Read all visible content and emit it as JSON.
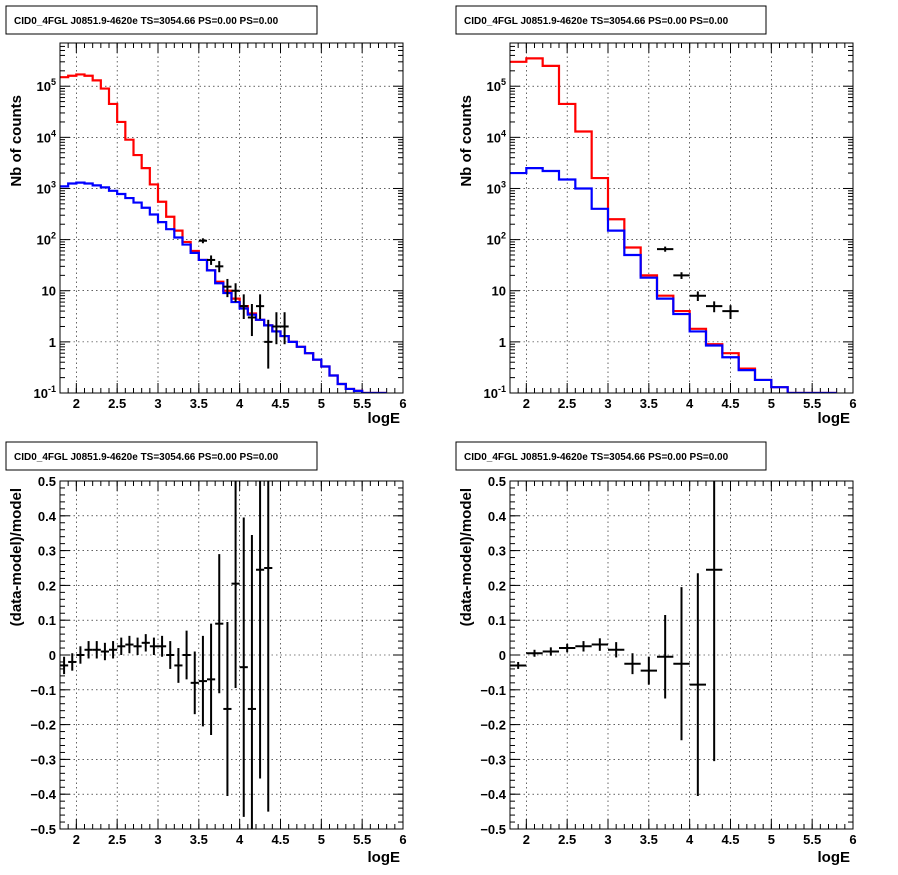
{
  "chart_data": [
    {
      "type": "line",
      "title": "CID0_4FGL J0851.9-4620e TS=3054.66 PS=0.00 PS=0.00",
      "xlabel": "logE",
      "ylabel": "Nb of counts",
      "log_y": true,
      "xlim": [
        1.8,
        6.0
      ],
      "ylim": [
        0.1,
        700000
      ],
      "xticks": [
        "2",
        "2.5",
        "3",
        "3.5",
        "4",
        "4.5",
        "5",
        "5.5",
        "6"
      ],
      "yticks": [
        "10^-1",
        "1",
        "10",
        "10^2",
        "10^3",
        "10^4",
        "10^5"
      ],
      "grid": true,
      "bin_edges": [
        1.8,
        1.9,
        2.0,
        2.1,
        2.2,
        2.3,
        2.4,
        2.5,
        2.6,
        2.7,
        2.8,
        2.9,
        3.0,
        3.1,
        3.2,
        3.3,
        3.4,
        3.5,
        3.6,
        3.7,
        3.8,
        3.9,
        4.0,
        4.1,
        4.2,
        4.3,
        4.4,
        4.5,
        4.6,
        4.7,
        4.8,
        4.9,
        5.0,
        5.1,
        5.2,
        5.3,
        5.4,
        5.5,
        5.6,
        5.7,
        5.8,
        5.9,
        6.0
      ],
      "series": [
        {
          "color": "#ff0000",
          "style": "histogram",
          "values": [
            150000,
            160000,
            170000,
            160000,
            130000,
            90000,
            45000,
            20000,
            9000,
            4500,
            2500,
            1200,
            550,
            280,
            150,
            90,
            60,
            40,
            25,
            15,
            10,
            7,
            5,
            3.6,
            2.7,
            2.1,
            1.6,
            1.3,
            1.0,
            0.8,
            0.6,
            0.45,
            0.33,
            0.22,
            0.15,
            0.12,
            0.11,
            0.1,
            0.1,
            0.1
          ]
        },
        {
          "color": "#0000ff",
          "style": "histogram",
          "values": [
            1100,
            1250,
            1300,
            1250,
            1150,
            1050,
            900,
            780,
            650,
            530,
            420,
            310,
            220,
            160,
            110,
            80,
            55,
            40,
            25,
            14,
            9,
            6,
            4.5,
            3.4,
            2.7,
            2.1,
            1.6,
            1.3,
            1.0,
            0.8,
            0.6,
            0.45,
            0.33,
            0.22,
            0.15,
            0.12,
            0.11,
            0.1,
            0.1,
            0.1
          ]
        },
        {
          "color": "#000000",
          "style": "errorbar",
          "x": [
            3.55,
            3.65,
            3.75,
            3.85,
            3.95,
            4.05,
            4.15,
            4.25,
            4.35,
            4.45,
            4.55
          ],
          "xerr": 0.05,
          "y": [
            95,
            40,
            30,
            12,
            10,
            5,
            3,
            5,
            1,
            2,
            2
          ],
          "ylow": [
            85,
            32,
            23,
            7.5,
            6,
            2.8,
            1.3,
            2.8,
            0.3,
            0.9,
            0.9
          ],
          "yhigh": [
            106,
            49,
            38,
            17,
            14,
            8.5,
            5.5,
            8.5,
            2.7,
            3.8,
            3.8
          ]
        }
      ]
    },
    {
      "type": "line",
      "title": "CID0_4FGL J0851.9-4620e TS=3054.66 PS=0.00 PS=0.00",
      "xlabel": "logE",
      "ylabel": "Nb of counts",
      "log_y": true,
      "xlim": [
        1.8,
        6.0
      ],
      "ylim": [
        0.1,
        700000
      ],
      "xticks": [
        "2",
        "2.5",
        "3",
        "3.5",
        "4",
        "4.5",
        "5",
        "5.5",
        "6"
      ],
      "yticks": [
        "10^-1",
        "1",
        "10",
        "10^2",
        "10^3",
        "10^4",
        "10^5"
      ],
      "grid": true,
      "bin_edges": [
        1.8,
        2.0,
        2.2,
        2.4,
        2.6,
        2.8,
        3.0,
        3.2,
        3.4,
        3.6,
        3.8,
        4.0,
        4.2,
        4.4,
        4.6,
        4.8,
        5.0,
        5.2,
        5.4,
        5.6,
        5.8,
        6.0
      ],
      "series": [
        {
          "color": "#ff0000",
          "style": "histogram",
          "values": [
            300000,
            350000,
            250000,
            45000,
            13000,
            1600,
            250,
            70,
            20,
            8,
            4,
            1.8,
            0.9,
            0.6,
            0.3,
            0.18,
            0.13,
            0.1,
            0.1,
            0.1
          ]
        },
        {
          "color": "#0000ff",
          "style": "histogram",
          "values": [
            2000,
            2500,
            2200,
            1500,
            1000,
            400,
            150,
            50,
            18,
            7,
            3.5,
            1.6,
            0.85,
            0.5,
            0.28,
            0.18,
            0.13,
            0.1,
            0.1,
            0.1
          ]
        },
        {
          "color": "#000000",
          "style": "errorbar",
          "x": [
            3.7,
            3.9,
            4.1,
            4.3,
            4.5
          ],
          "xerr": 0.1,
          "y": [
            65,
            20,
            8,
            5,
            4
          ],
          "ylow": [
            58,
            17,
            6.3,
            3.8,
            2.8
          ],
          "yhigh": [
            73,
            23,
            9.7,
            6.2,
            5.2
          ]
        }
      ]
    },
    {
      "type": "scatter",
      "title": "CID0_4FGL J0851.9-4620e TS=3054.66 PS=0.00 PS=0.00",
      "xlabel": "logE",
      "ylabel": "(data-model)/model",
      "xlim": [
        1.8,
        6.0
      ],
      "ylim": [
        -0.5,
        0.5
      ],
      "xticks": [
        "2",
        "2.5",
        "3",
        "3.5",
        "4",
        "4.5",
        "5",
        "5.5",
        "6"
      ],
      "yticks": [
        "-0.5",
        "-0.4",
        "-0.3",
        "-0.2",
        "-0.1",
        "0",
        "0.1",
        "0.2",
        "0.3",
        "0.4",
        "0.5"
      ],
      "grid": true,
      "series": [
        {
          "color": "#000000",
          "style": "errorbar",
          "xerr": 0.05,
          "x": [
            1.85,
            1.95,
            2.05,
            2.15,
            2.25,
            2.35,
            2.45,
            2.55,
            2.65,
            2.75,
            2.85,
            2.95,
            3.05,
            3.15,
            3.25,
            3.35,
            3.45,
            3.55,
            3.65,
            3.75,
            3.85,
            3.95,
            4.05,
            4.15,
            4.25,
            4.35
          ],
          "y": [
            -0.03,
            -0.02,
            0.0,
            0.015,
            0.015,
            0.01,
            0.015,
            0.025,
            0.03,
            0.025,
            0.035,
            0.025,
            0.025,
            0.0,
            -0.03,
            0.0,
            -0.08,
            -0.075,
            -0.07,
            0.09,
            -0.155,
            0.205,
            -0.035,
            -0.155,
            0.245,
            0.25
          ],
          "yerr": [
            0.025,
            0.025,
            0.025,
            0.025,
            0.025,
            0.025,
            0.025,
            0.025,
            0.025,
            0.025,
            0.025,
            0.025,
            0.03,
            0.04,
            0.05,
            0.07,
            0.09,
            0.13,
            0.16,
            0.2,
            0.25,
            0.3,
            0.43,
            0.5,
            0.6,
            0.7
          ]
        }
      ]
    },
    {
      "type": "scatter",
      "title": "CID0_4FGL J0851.9-4620e TS=3054.66 PS=0.00 PS=0.00",
      "xlabel": "logE",
      "ylabel": "(data-model)/model",
      "xlim": [
        1.8,
        6.0
      ],
      "ylim": [
        -0.5,
        0.5
      ],
      "xticks": [
        "2",
        "2.5",
        "3",
        "3.5",
        "4",
        "4.5",
        "5",
        "5.5",
        "6"
      ],
      "yticks": [
        "-0.5",
        "-0.4",
        "-0.3",
        "-0.2",
        "-0.1",
        "0",
        "0.1",
        "0.2",
        "0.3",
        "0.4",
        "0.5"
      ],
      "grid": true,
      "series": [
        {
          "color": "#000000",
          "style": "errorbar",
          "xerr": 0.1,
          "x": [
            1.9,
            2.1,
            2.3,
            2.5,
            2.7,
            2.9,
            3.1,
            3.3,
            3.5,
            3.7,
            3.9,
            4.1,
            4.3
          ],
          "y": [
            -0.03,
            0.005,
            0.01,
            0.02,
            0.025,
            0.03,
            0.015,
            -0.025,
            -0.045,
            -0.005,
            -0.025,
            -0.085,
            0.245
          ],
          "yerr": [
            0.01,
            0.01,
            0.012,
            0.012,
            0.015,
            0.018,
            0.022,
            0.03,
            0.04,
            0.12,
            0.22,
            0.32,
            0.55
          ]
        }
      ]
    }
  ]
}
